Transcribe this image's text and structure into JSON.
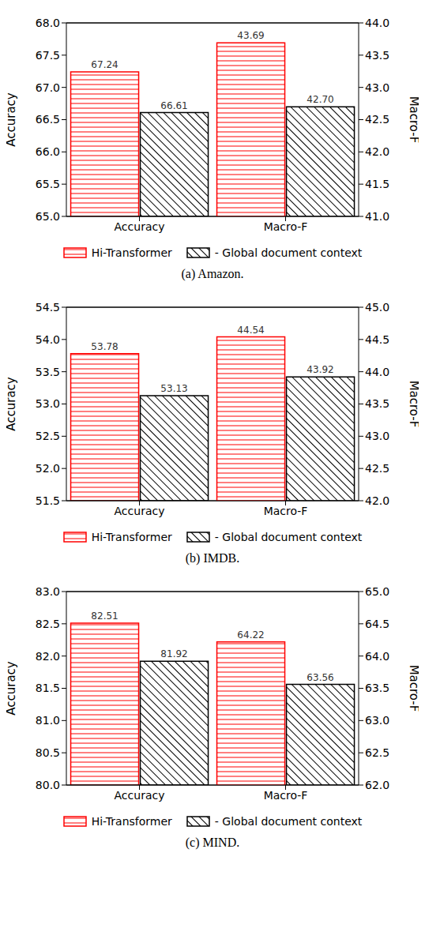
{
  "chart_data": [
    {
      "type": "bar",
      "title": "(a) Amazon.",
      "categories": [
        "Accuracy",
        "Macro-F"
      ],
      "ylabel": "Accuracy",
      "y2label": "Macro-F",
      "ylim": [
        65,
        68
      ],
      "yticks": [
        {
          "value": 65,
          "label": "65.0"
        },
        65.5,
        {
          "value": 66,
          "label": "66.0"
        },
        66.5,
        {
          "value": 67,
          "label": "67.0"
        },
        67.5,
        {
          "value": 68,
          "label": "68.0"
        }
      ],
      "y2lim": [
        41,
        44
      ],
      "y2ticks": [
        {
          "value": 41,
          "label": "41.0"
        },
        41.5,
        {
          "value": 42,
          "label": "42.0"
        },
        42.5,
        {
          "value": 43,
          "label": "43.0"
        },
        43.5,
        {
          "value": 44,
          "label": "44.0"
        }
      ],
      "data_labels": true,
      "series": [
        {
          "name": "Hi-Transformer",
          "color": "#ff0000",
          "values": [
            67.24,
            null
          ]
        },
        {
          "name": "Hi-Transformer",
          "color": "#ff0000",
          "values": [
            null,
            43.69
          ],
          "axis": "y2"
        },
        {
          "name": "- Global document context",
          "color": "#000000",
          "values": [
            66.61,
            null
          ]
        },
        {
          "name": "- Global document context",
          "color": "#000000",
          "values": [
            null,
            42.7
          ],
          "value_labels": [
            null,
            "42.70"
          ],
          "axis": "y2"
        }
      ]
    },
    {
      "type": "bar",
      "title": "(b) IMDB.",
      "categories": [
        "Accuracy",
        "Macro-F"
      ],
      "ylabel": "Accuracy",
      "y2label": "Macro-F",
      "ylim": [
        51.5,
        54.5
      ],
      "yticks": [
        51.5,
        {
          "value": 52,
          "label": "52.0"
        },
        52.5,
        {
          "value": 53,
          "label": "53.0"
        },
        53.5,
        {
          "value": 54,
          "label": "54.0"
        },
        54.5
      ],
      "y2lim": [
        42,
        45
      ],
      "y2ticks": [
        {
          "value": 42,
          "label": "42.0"
        },
        42.5,
        {
          "value": 43,
          "label": "43.0"
        },
        43.5,
        {
          "value": 44,
          "label": "44.0"
        },
        44.5,
        {
          "value": 45,
          "label": "45.0"
        }
      ],
      "data_labels": true,
      "series": [
        {
          "name": "Hi-Transformer",
          "color": "#ff0000",
          "values": [
            53.78,
            null
          ]
        },
        {
          "name": "Hi-Transformer",
          "color": "#ff0000",
          "values": [
            null,
            44.54
          ],
          "axis": "y2"
        },
        {
          "name": "- Global document context",
          "color": "#000000",
          "values": [
            53.13,
            null
          ]
        },
        {
          "name": "- Global document context",
          "color": "#000000",
          "values": [
            null,
            43.92
          ],
          "axis": "y2"
        }
      ]
    },
    {
      "type": "bar",
      "title": "(c) MIND.",
      "categories": [
        "Accuracy",
        "Macro-F"
      ],
      "ylabel": "Accuracy",
      "y2label": "Macro-F",
      "ylim": [
        80,
        83
      ],
      "yticks": [
        {
          "value": 80,
          "label": "80.0"
        },
        80.5,
        {
          "value": 81,
          "label": "81.0"
        },
        81.5,
        {
          "value": 82,
          "label": "82.0"
        },
        82.5,
        {
          "value": 83,
          "label": "83.0"
        }
      ],
      "y2lim": [
        62,
        65
      ],
      "y2ticks": [
        {
          "value": 62,
          "label": "62.0"
        },
        62.5,
        {
          "value": 63,
          "label": "63.0"
        },
        63.5,
        {
          "value": 64,
          "label": "64.0"
        },
        64.5,
        {
          "value": 65,
          "label": "65.0"
        }
      ],
      "data_labels": true,
      "series": [
        {
          "name": "Hi-Transformer",
          "color": "#ff0000",
          "values": [
            82.51,
            null
          ]
        },
        {
          "name": "Hi-Transformer",
          "color": "#ff0000",
          "values": [
            null,
            64.22
          ],
          "axis": "y2"
        },
        {
          "name": "- Global document context",
          "color": "#000000",
          "values": [
            81.92,
            null
          ]
        },
        {
          "name": "- Global document context",
          "color": "#000000",
          "values": [
            null,
            63.56
          ],
          "axis": "y2"
        }
      ]
    }
  ]
}
